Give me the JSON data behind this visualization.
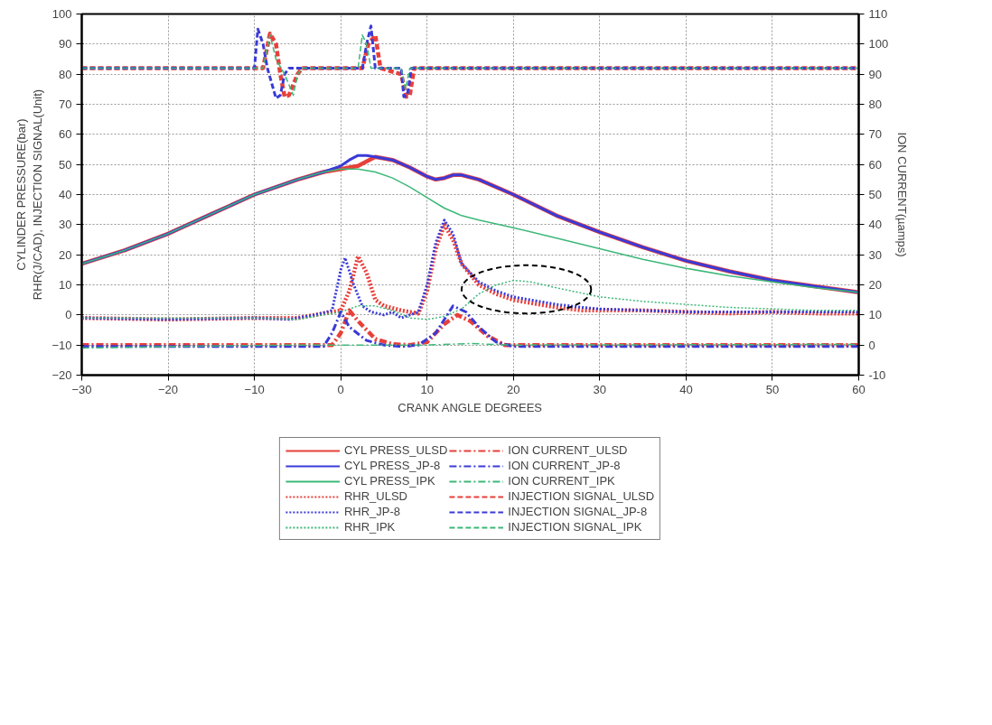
{
  "chart_data": {
    "type": "line",
    "xlabel": "CRANK ANGLE DEGREES",
    "ylabel": "CYLINDER PRESSURE(bar)\nRHR(J/CAD), INJECTION SIGNAL(Unit)",
    "y2label": "ION CURRENT(µamps)",
    "xlim": [
      -30,
      60
    ],
    "xticks": [
      -30,
      -20,
      -10,
      0,
      10,
      20,
      30,
      40,
      50,
      60
    ],
    "ylim": [
      -20,
      100
    ],
    "yticks": [
      -20,
      -10,
      0,
      10,
      20,
      30,
      40,
      50,
      60,
      70,
      80,
      90,
      100
    ],
    "y2lim": [
      -10,
      110
    ],
    "y2ticks": [
      {
        "value": -10,
        "label": "-10"
      },
      0,
      10,
      20,
      30,
      40,
      50,
      60,
      70,
      80,
      90,
      100,
      110
    ],
    "grid": true,
    "legend": "bottom",
    "series": [
      {
        "name": "CYL PRESS_ULSD",
        "color": "#e8403a",
        "line_style": "solid",
        "x": [
          -30,
          -25,
          -20,
          -15,
          -10,
          -5,
          -2,
          0,
          2,
          3,
          4,
          6,
          8,
          10,
          11,
          12,
          13,
          14,
          16,
          20,
          25,
          30,
          35,
          40,
          45,
          50,
          55,
          60
        ],
        "values": [
          17,
          21.5,
          27,
          33.5,
          40,
          45,
          47.5,
          48.5,
          49.5,
          51,
          52.5,
          51.5,
          49,
          46,
          45,
          45.5,
          46.5,
          46.5,
          45,
          40,
          33,
          27.5,
          22.5,
          18,
          14.5,
          11.5,
          9.5,
          7.5
        ]
      },
      {
        "name": "CYL PRESS_JP-8",
        "color": "#3a3ad8",
        "line_style": "solid",
        "x": [
          -30,
          -25,
          -20,
          -15,
          -10,
          -5,
          -2,
          0,
          1,
          2,
          3,
          4,
          6,
          8,
          10,
          11,
          12,
          13,
          14,
          16,
          20,
          25,
          30,
          35,
          40,
          45,
          50,
          55,
          60
        ],
        "values": [
          17,
          21.5,
          27,
          33.5,
          40,
          45,
          47.5,
          49.5,
          51.5,
          53,
          53,
          52.5,
          51.5,
          49,
          46,
          45,
          45.5,
          46.5,
          46.5,
          45,
          40,
          33,
          27.5,
          22.5,
          18,
          14.5,
          11.5,
          9.5,
          7.5
        ]
      },
      {
        "name": "CYL PRESS_IPK",
        "color": "#3cb878",
        "line_style": "solid",
        "x": [
          -30,
          -25,
          -20,
          -15,
          -10,
          -5,
          -2,
          0,
          2,
          4,
          6,
          8,
          10,
          12,
          14,
          16,
          20,
          25,
          30,
          35,
          40,
          45,
          50,
          55,
          60
        ],
        "values": [
          17,
          21.5,
          27,
          33.5,
          40,
          45,
          47.5,
          48.5,
          48.5,
          47.5,
          45.5,
          42.5,
          39,
          35.5,
          33,
          31.5,
          29,
          25.5,
          22,
          18.5,
          15.5,
          13,
          11,
          9,
          7.5
        ]
      },
      {
        "name": "RHR_ULSD",
        "color": "#e8403a",
        "line_style": "dotted",
        "x": [
          -30,
          -20,
          -10,
          -5,
          -3,
          -1,
          0,
          1,
          2,
          3,
          4,
          5,
          7,
          9,
          10,
          11,
          12,
          13,
          14,
          16,
          18,
          20,
          22,
          25,
          28,
          30,
          35,
          40,
          45,
          50,
          55,
          60
        ],
        "values": [
          -1,
          -1.5,
          -1,
          -1,
          0,
          1,
          1.5,
          8,
          19.5,
          14,
          5,
          3,
          1.5,
          0.5,
          8,
          22,
          30,
          25,
          17,
          10,
          7,
          5,
          4,
          2.5,
          1.5,
          1.5,
          1.5,
          1,
          0.5,
          1,
          0.5,
          0.5
        ]
      },
      {
        "name": "RHR_JP-8",
        "color": "#3a3ad8",
        "line_style": "dotted",
        "x": [
          -30,
          -20,
          -10,
          -6,
          -3,
          -1,
          0,
          0.5,
          1.5,
          2.5,
          3.5,
          5,
          6,
          7,
          8,
          9,
          10,
          11,
          12,
          13,
          14,
          16,
          18,
          20,
          22,
          25,
          28,
          30,
          35,
          40,
          45,
          50,
          55,
          60
        ],
        "values": [
          -1,
          -1.5,
          -1,
          -1.5,
          0,
          1.5,
          15,
          19,
          10,
          3,
          1,
          0,
          1,
          -1,
          0,
          1,
          10,
          24,
          31.5,
          27,
          17,
          11,
          8,
          6,
          5,
          3.5,
          2.5,
          2,
          1.5,
          1,
          1,
          1,
          1,
          1
        ]
      },
      {
        "name": "RHR_IPK",
        "color": "#3cb878",
        "line_style": "dotted",
        "x": [
          -30,
          -10,
          -5,
          -2,
          0,
          2,
          4,
          6,
          8,
          10,
          12,
          14,
          16,
          18,
          20,
          22,
          25,
          30,
          35,
          40,
          45,
          50,
          55,
          60
        ],
        "values": [
          -1,
          -1,
          -1.5,
          0,
          1,
          3,
          3,
          1.5,
          -1,
          -1.5,
          -0.5,
          2,
          7,
          10,
          11.5,
          11,
          9,
          6,
          4.5,
          3.5,
          2.5,
          2,
          1.5,
          1.5
        ]
      },
      {
        "name": "ION CURRENT_ULSD",
        "color": "#e8403a",
        "line_style": "dashdot",
        "axis": "y2",
        "x": [
          -30,
          -2,
          -1,
          0,
          1,
          2,
          4,
          6,
          8,
          10,
          12,
          13.5,
          15,
          17,
          19,
          25,
          60
        ],
        "values": [
          0,
          0,
          0,
          4,
          11.5,
          8,
          2,
          0.3,
          0,
          1,
          7,
          10,
          8,
          3,
          0,
          0,
          0
        ]
      },
      {
        "name": "ION CURRENT_JP-8",
        "color": "#3a3ad8",
        "line_style": "dashdot",
        "axis": "y2",
        "x": [
          -30,
          -2,
          -1,
          0,
          1,
          3,
          5,
          7,
          9,
          11,
          13,
          14.5,
          16,
          18,
          20,
          60
        ],
        "values": [
          -0.5,
          -0.5,
          4,
          11,
          6,
          1.5,
          0,
          -0.5,
          0,
          4,
          13,
          11,
          6,
          1,
          -0.5,
          -0.5
        ]
      },
      {
        "name": "ION CURRENT_IPK",
        "color": "#3cb878",
        "line_style": "dashdot",
        "axis": "y2",
        "x": [
          -30,
          -20,
          -5,
          0,
          10,
          15,
          20,
          60
        ],
        "values": [
          -1,
          -0.5,
          0,
          0,
          0,
          0.5,
          0,
          0.2
        ]
      },
      {
        "name": "INJECTION SIGNAL_ULSD",
        "color": "#e8403a",
        "line_style": "dashed",
        "x": [
          -30,
          -9,
          -8.2,
          -7.5,
          -7,
          -6.5,
          -6,
          -5,
          -4.5,
          2.5,
          3.2,
          4,
          4.6,
          7,
          7.6,
          8,
          8.5,
          60
        ],
        "values": [
          82,
          82,
          93.5,
          90,
          80,
          72.5,
          73,
          80,
          82,
          82,
          90,
          93,
          82,
          80,
          72.5,
          73,
          82,
          82
        ]
      },
      {
        "name": "INJECTION SIGNAL_JP-8",
        "color": "#3a3ad8",
        "line_style": "dashed",
        "x": [
          -30,
          -10,
          -9.6,
          -9,
          -8.5,
          -7.5,
          -7,
          -6.5,
          -6,
          2.5,
          3,
          3.5,
          4,
          7,
          7.3,
          7.7,
          8.2,
          60
        ],
        "values": [
          82,
          82,
          95,
          90,
          82,
          72,
          73,
          80,
          82,
          82,
          90,
          96,
          82,
          82,
          72.5,
          73,
          82,
          82
        ]
      },
      {
        "name": "INJECTION SIGNAL_IPK",
        "color": "#3cb878",
        "line_style": "dashed",
        "x": [
          -30,
          -9,
          -8.2,
          -7.5,
          -6.5,
          -5.5,
          -5,
          -4.5,
          2,
          2.5,
          3,
          3.5,
          7,
          7.5,
          8,
          60
        ],
        "values": [
          82,
          82,
          93,
          85,
          80,
          73,
          80,
          82,
          82,
          93,
          90,
          82,
          82,
          75,
          82,
          82
        ]
      }
    ]
  }
}
